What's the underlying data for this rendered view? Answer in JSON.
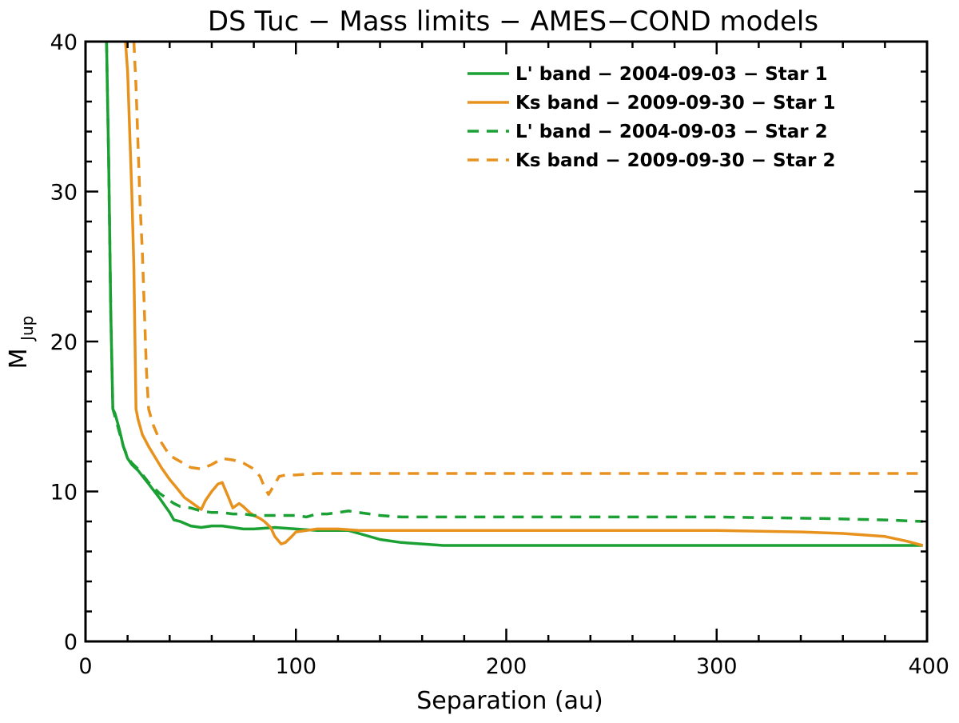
{
  "chart_data": {
    "type": "line",
    "title": "DS Tuc − Mass limits − AMES−COND models",
    "xlabel": "Separation (au)",
    "ylabel": {
      "main": "M",
      "sub": "Jup"
    },
    "xlim": [
      0,
      400
    ],
    "ylim": [
      0,
      40
    ],
    "xticks": [
      0,
      100,
      200,
      300,
      400
    ],
    "yticks": [
      0,
      10,
      20,
      30,
      40
    ],
    "xtick_labels": [
      "0",
      "100",
      "200",
      "300",
      "400"
    ],
    "ytick_labels": [
      "0",
      "10",
      "20",
      "30",
      "40"
    ],
    "legend_position": "top-right",
    "series": [
      {
        "name": "L'  band − 2004-09-03 − Star 1",
        "color": "#1aa033",
        "dash": "solid",
        "x": [
          10,
          11,
          12,
          13,
          14,
          16,
          18,
          20,
          22,
          25,
          30,
          35,
          40,
          42,
          45,
          50,
          55,
          60,
          65,
          70,
          75,
          80,
          90,
          100,
          110,
          120,
          125,
          130,
          140,
          150,
          160,
          170,
          200,
          250,
          300,
          350,
          380,
          398
        ],
        "y": [
          40,
          32,
          22,
          15.5,
          15.2,
          14.2,
          13.0,
          12.2,
          11.8,
          11.4,
          10.5,
          9.6,
          8.6,
          8.1,
          8.0,
          7.7,
          7.6,
          7.7,
          7.7,
          7.6,
          7.5,
          7.5,
          7.6,
          7.5,
          7.4,
          7.4,
          7.4,
          7.2,
          6.8,
          6.6,
          6.5,
          6.4,
          6.4,
          6.4,
          6.4,
          6.4,
          6.4,
          6.4
        ]
      },
      {
        "name": "Ks band − 2009-09-30 − Star 1",
        "color": "#e8921e",
        "dash": "solid",
        "x": [
          19,
          20,
          21,
          22,
          23,
          24,
          25,
          27,
          30,
          33,
          36,
          40,
          43,
          47,
          50,
          53,
          55,
          57,
          60,
          63,
          65,
          68,
          70,
          73,
          75,
          78,
          80,
          83,
          85,
          88,
          90,
          93,
          95,
          98,
          100,
          105,
          110,
          120,
          130,
          140,
          150,
          160,
          200,
          250,
          300,
          340,
          360,
          380,
          390,
          398
        ],
        "y": [
          40,
          38,
          34,
          30,
          25,
          15.5,
          14.8,
          13.8,
          13.0,
          12.3,
          11.6,
          10.8,
          10.3,
          9.6,
          9.3,
          9.0,
          8.8,
          9.4,
          10.0,
          10.5,
          10.6,
          9.6,
          8.9,
          9.2,
          9.0,
          8.6,
          8.4,
          8.2,
          8.0,
          7.6,
          7.0,
          6.5,
          6.6,
          7.0,
          7.3,
          7.4,
          7.5,
          7.5,
          7.4,
          7.4,
          7.4,
          7.4,
          7.4,
          7.4,
          7.4,
          7.3,
          7.2,
          7.0,
          6.7,
          6.4
        ]
      },
      {
        "name": "L'  band − 2004-09-03 − Star 2",
        "color": "#1aa033",
        "dash": "dashed",
        "x": [
          10,
          11,
          12,
          13,
          14,
          16,
          18,
          20,
          22,
          25,
          30,
          35,
          40,
          42,
          45,
          50,
          55,
          60,
          65,
          70,
          75,
          80,
          85,
          90,
          95,
          100,
          105,
          110,
          115,
          120,
          125,
          130,
          135,
          140,
          150,
          160,
          200,
          250,
          300,
          350,
          380,
          398
        ],
        "y": [
          40,
          32,
          22,
          15.5,
          15.0,
          14.0,
          13.0,
          12.3,
          11.9,
          11.5,
          10.6,
          9.9,
          9.4,
          9.2,
          9.0,
          8.9,
          8.7,
          8.6,
          8.6,
          8.5,
          8.5,
          8.4,
          8.4,
          8.4,
          8.4,
          8.4,
          8.3,
          8.5,
          8.5,
          8.6,
          8.7,
          8.6,
          8.5,
          8.4,
          8.3,
          8.3,
          8.3,
          8.3,
          8.3,
          8.2,
          8.1,
          8.0
        ]
      },
      {
        "name": "Ks band − 2009-09-30 − Star 2",
        "color": "#e8921e",
        "dash": "dashed",
        "x": [
          23,
          24,
          25,
          26,
          27,
          28,
          29,
          30,
          32,
          35,
          40,
          45,
          50,
          55,
          60,
          65,
          70,
          75,
          80,
          83,
          85,
          87,
          90,
          92,
          95,
          100,
          110,
          120,
          150,
          200,
          250,
          300,
          350,
          398
        ],
        "y": [
          40,
          37,
          33,
          29,
          26,
          22,
          18,
          15.5,
          14.5,
          13.5,
          12.4,
          12.0,
          11.6,
          11.5,
          11.8,
          12.2,
          12.1,
          11.9,
          11.5,
          11.0,
          10.3,
          9.8,
          10.5,
          11.0,
          11.1,
          11.1,
          11.2,
          11.2,
          11.2,
          11.2,
          11.2,
          11.2,
          11.2,
          11.2
        ]
      }
    ]
  }
}
